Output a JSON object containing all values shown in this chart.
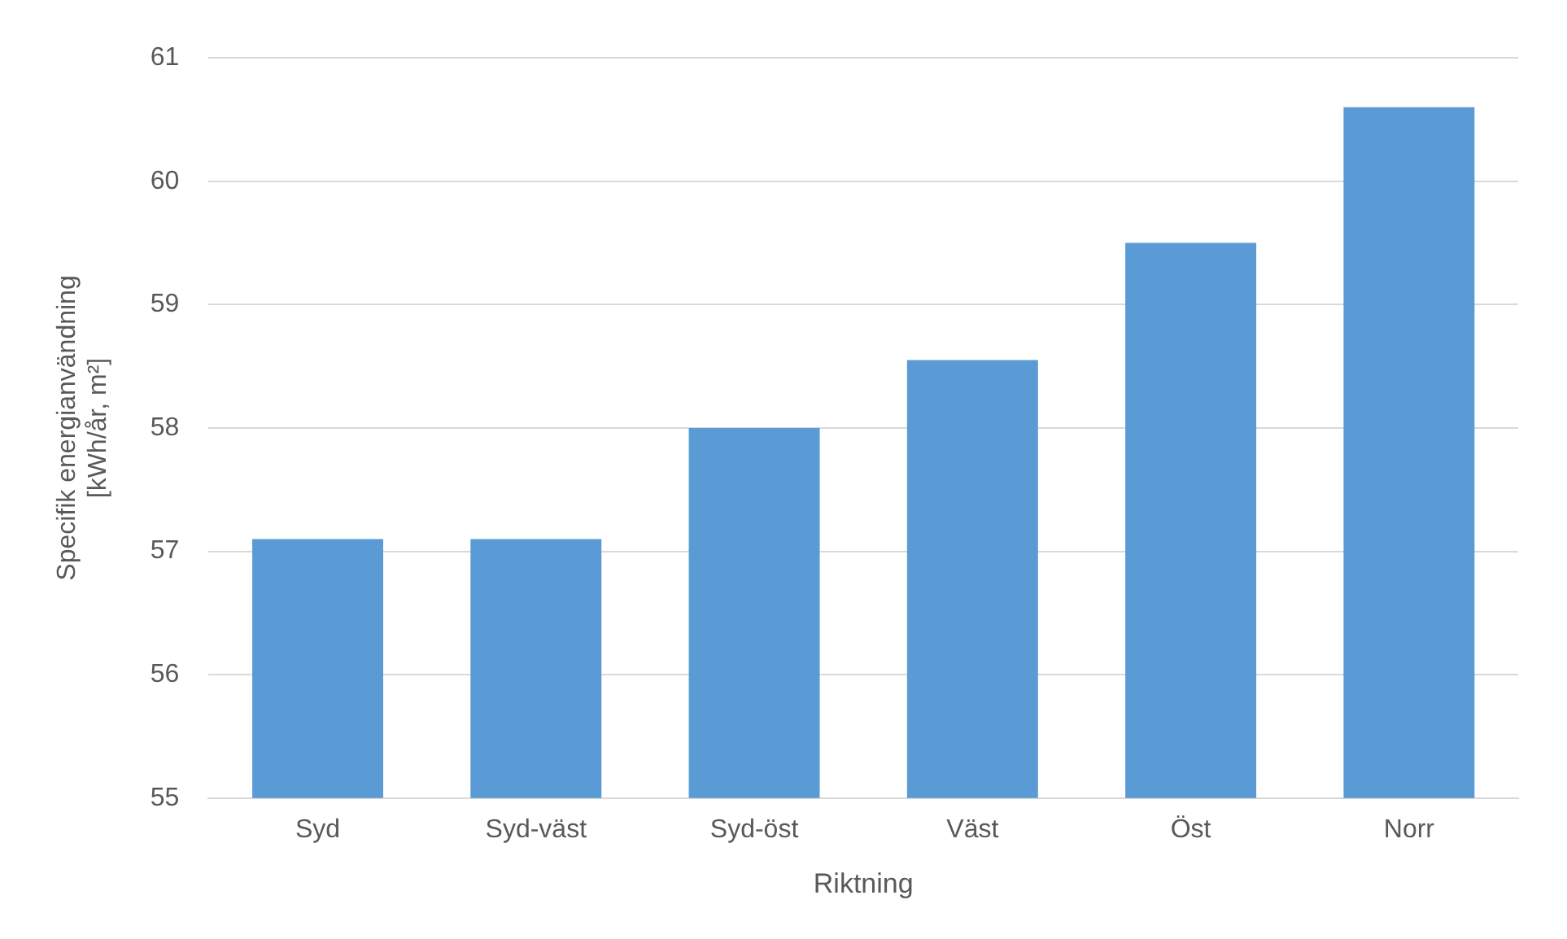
{
  "chart_data": {
    "type": "bar",
    "xlabel": "Riktning",
    "ylabel": "Specifik energianvändning\n[kWh/år, m²]",
    "categories": [
      "Syd",
      "Syd-väst",
      "Syd-öst",
      "Väst",
      "Öst",
      "Norr"
    ],
    "values": [
      57.1,
      57.1,
      58.0,
      58.55,
      59.5,
      60.6
    ],
    "color": "#5b9bd5",
    "ylim": [
      55,
      61
    ],
    "yticks": [
      55,
      56,
      57,
      58,
      59,
      60,
      61
    ],
    "grid": "y",
    "legend": false
  }
}
